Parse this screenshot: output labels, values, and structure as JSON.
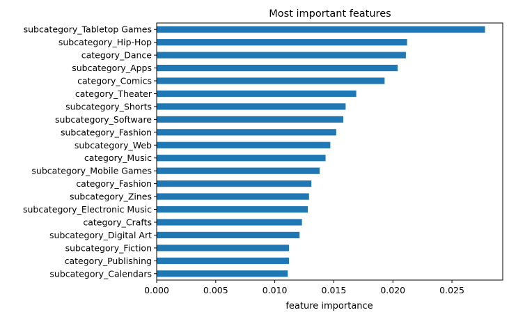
{
  "chart_data": {
    "type": "bar",
    "orientation": "horizontal",
    "title": "Most important features",
    "xlabel": "feature importance",
    "ylabel": "",
    "xlim": [
      0.0,
      0.0293
    ],
    "xticks": [
      0.0,
      0.005,
      0.01,
      0.015,
      0.02,
      0.025
    ],
    "xtick_labels": [
      "0.000",
      "0.005",
      "0.010",
      "0.015",
      "0.020",
      "0.025"
    ],
    "grid": false,
    "bar_color": "#1f77b4",
    "categories": [
      "subcategory_Tabletop Games",
      "subcategory_Hip-Hop",
      "category_Dance",
      "subcategory_Apps",
      "category_Comics",
      "category_Theater",
      "subcategory_Shorts",
      "subcategory_Software",
      "subcategory_Fashion",
      "subcategory_Web",
      "category_Music",
      "subcategory_Mobile Games",
      "category_Fashion",
      "subcategory_Zines",
      "subcategory_Electronic Music",
      "category_Crafts",
      "subcategory_Digital Art",
      "subcategory_Fiction",
      "category_Publishing",
      "subcategory_Calendars"
    ],
    "values": [
      0.0278,
      0.0212,
      0.0211,
      0.0204,
      0.0193,
      0.0169,
      0.016,
      0.0158,
      0.0152,
      0.0147,
      0.0143,
      0.0138,
      0.0131,
      0.0129,
      0.0128,
      0.0123,
      0.0121,
      0.0112,
      0.0112,
      0.0111
    ]
  }
}
